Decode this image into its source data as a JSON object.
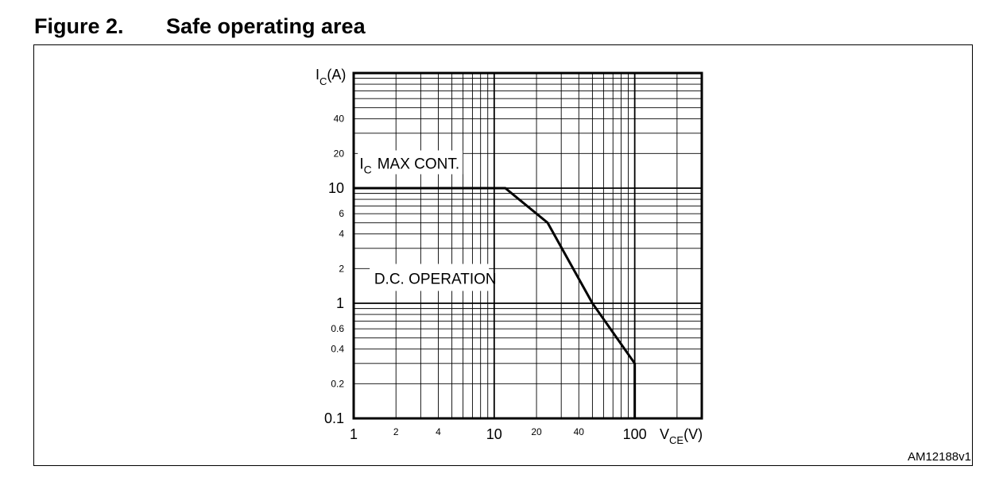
{
  "figure": {
    "number": "Figure 2.",
    "title": "Safe operating area",
    "code": "AM12188v1"
  },
  "chart_data": {
    "type": "line",
    "title": "Safe operating area",
    "x_scale": "log",
    "y_scale": "log",
    "xlim": [
      1,
      300
    ],
    "ylim": [
      0.1,
      100
    ],
    "grid": true,
    "ylabel": {
      "main": "I",
      "sub": "C",
      "unit": "(A)"
    },
    "xlabel": {
      "main": "V",
      "sub": "CE",
      "unit": "(V)"
    },
    "x_ticks": [
      {
        "value": 1,
        "label": "1",
        "size": "big"
      },
      {
        "value": 2,
        "label": "2",
        "size": "small"
      },
      {
        "value": 4,
        "label": "4",
        "size": "small"
      },
      {
        "value": 10,
        "label": "10",
        "size": "big"
      },
      {
        "value": 20,
        "label": "20",
        "size": "small"
      },
      {
        "value": 40,
        "label": "40",
        "size": "small"
      },
      {
        "value": 100,
        "label": "100",
        "size": "big"
      }
    ],
    "y_ticks": [
      {
        "value": 0.1,
        "label": "0.1",
        "size": "big"
      },
      {
        "value": 0.2,
        "label": "0.2",
        "size": "small"
      },
      {
        "value": 0.4,
        "label": "0.4",
        "size": "small"
      },
      {
        "value": 0.6,
        "label": "0.6",
        "size": "small"
      },
      {
        "value": 1,
        "label": "1",
        "size": "big"
      },
      {
        "value": 2,
        "label": "2",
        "size": "small"
      },
      {
        "value": 4,
        "label": "4",
        "size": "small"
      },
      {
        "value": 6,
        "label": "6",
        "size": "small"
      },
      {
        "value": 10,
        "label": "10",
        "size": "big"
      },
      {
        "value": 20,
        "label": "20",
        "size": "small"
      },
      {
        "value": 40,
        "label": "40",
        "size": "small"
      }
    ],
    "series": [
      {
        "x": [
          1,
          12,
          24,
          50,
          100,
          100
        ],
        "y": [
          10,
          10,
          5,
          1,
          0.3,
          0.1
        ]
      }
    ],
    "annotations": [
      {
        "main": "I",
        "sub": "C",
        "rest": "MAX CONT.",
        "x": 1.1,
        "y": 15
      },
      {
        "main": "D.C. OPERATION",
        "x": 1.4,
        "y": 1.5
      }
    ]
  }
}
